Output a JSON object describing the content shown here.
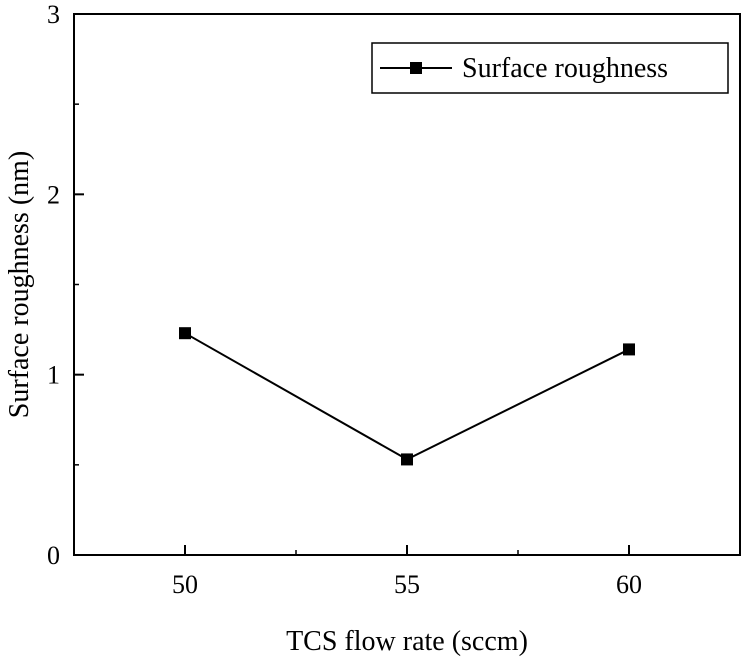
{
  "chart_data": {
    "type": "line",
    "x": [
      50,
      55,
      60
    ],
    "series": [
      {
        "name": "Surface roughness",
        "values": [
          1.23,
          0.53,
          1.14
        ],
        "color": "#000000",
        "marker": "square"
      }
    ],
    "xlabel": "TCS flow rate (sccm)",
    "ylabel": "Surface roughness (nm)",
    "xlim": [
      47.5,
      62.5
    ],
    "ylim": [
      0,
      3
    ],
    "xticks": [
      "50",
      "55",
      "60"
    ],
    "yticks": [
      "0",
      "1",
      "2",
      "3"
    ],
    "grid": false,
    "legend_position": "top-right"
  }
}
